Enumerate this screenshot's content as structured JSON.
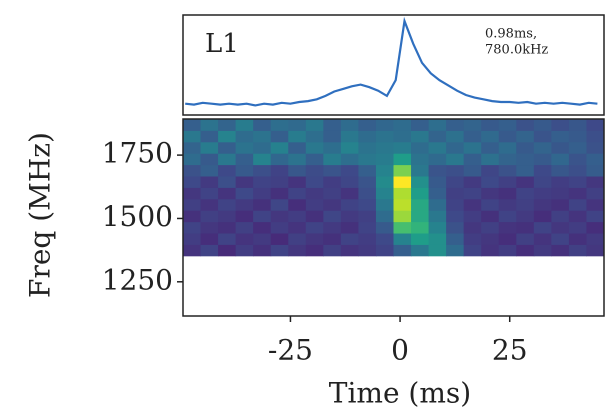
{
  "chart_data": [
    {
      "type": "line",
      "label": "L1",
      "annotation": [
        "0.98ms,",
        "780.0kHz"
      ],
      "color": "#2f6fbf",
      "xlim": [
        -49.5,
        46.5
      ],
      "ylim": [
        -0.1,
        1.05
      ],
      "x": [
        -49,
        -47,
        -45,
        -43,
        -41,
        -39,
        -37,
        -35,
        -33,
        -31,
        -29,
        -27,
        -25,
        -23,
        -21,
        -19,
        -17,
        -15,
        -13,
        -11,
        -9,
        -7,
        -5,
        -3,
        -1,
        1,
        3,
        5,
        7,
        9,
        11,
        13,
        15,
        17,
        19,
        21,
        23,
        25,
        27,
        29,
        31,
        33,
        35,
        37,
        39,
        41,
        43,
        45
      ],
      "values": [
        0.03,
        0.02,
        0.04,
        0.03,
        0.02,
        0.03,
        0.02,
        0.03,
        0.01,
        0.03,
        0.02,
        0.04,
        0.03,
        0.05,
        0.06,
        0.08,
        0.12,
        0.17,
        0.2,
        0.23,
        0.25,
        0.22,
        0.18,
        0.12,
        0.3,
        0.98,
        0.72,
        0.5,
        0.38,
        0.3,
        0.24,
        0.18,
        0.13,
        0.1,
        0.08,
        0.06,
        0.05,
        0.05,
        0.04,
        0.05,
        0.03,
        0.04,
        0.03,
        0.04,
        0.03,
        0.02,
        0.04,
        0.03
      ]
    },
    {
      "type": "heatmap",
      "xlabel": "Time (ms)",
      "ylabel": "Freq (MHz)",
      "colormap": "viridis",
      "zlim": [
        0,
        1
      ],
      "xlim": [
        -49.5,
        46.5
      ],
      "ylim": [
        1115,
        1892.5
      ],
      "xticks": [
        -25,
        0,
        25
      ],
      "yticks": [
        1250,
        1500,
        1750
      ],
      "x": [
        -47.5,
        -43.5,
        -39.5,
        -35.5,
        -31.5,
        -27.5,
        -23.5,
        -19.5,
        -15.5,
        -11.5,
        -7.5,
        -3.5,
        0.5,
        4.5,
        8.5,
        12.5,
        16.5,
        20.5,
        24.5,
        28.5,
        32.5,
        36.5,
        40.5,
        44.5
      ],
      "y": [
        1375,
        1420,
        1465,
        1510,
        1555,
        1600,
        1645,
        1690,
        1735,
        1780,
        1825,
        1870
      ],
      "z": [
        [
          0.15,
          0.2,
          0.12,
          0.18,
          0.14,
          0.2,
          0.16,
          0.13,
          0.19,
          0.15,
          0.17,
          0.2,
          0.3,
          0.4,
          0.5,
          0.35,
          0.2,
          0.15,
          0.18,
          0.13,
          0.17,
          0.14,
          0.19,
          0.16
        ],
        [
          0.18,
          0.13,
          0.2,
          0.15,
          0.17,
          0.12,
          0.19,
          0.16,
          0.14,
          0.2,
          0.18,
          0.22,
          0.45,
          0.55,
          0.5,
          0.3,
          0.18,
          0.16,
          0.13,
          0.19,
          0.15,
          0.2,
          0.14,
          0.17
        ],
        [
          0.2,
          0.16,
          0.14,
          0.19,
          0.13,
          0.18,
          0.15,
          0.2,
          0.17,
          0.14,
          0.2,
          0.28,
          0.7,
          0.65,
          0.45,
          0.25,
          0.16,
          0.19,
          0.15,
          0.14,
          0.2,
          0.16,
          0.18,
          0.13
        ],
        [
          0.14,
          0.19,
          0.17,
          0.13,
          0.2,
          0.16,
          0.18,
          0.14,
          0.21,
          0.17,
          0.19,
          0.35,
          0.85,
          0.6,
          0.4,
          0.22,
          0.18,
          0.14,
          0.2,
          0.17,
          0.13,
          0.19,
          0.15,
          0.2
        ],
        [
          0.19,
          0.15,
          0.2,
          0.17,
          0.14,
          0.21,
          0.13,
          0.18,
          0.16,
          0.2,
          0.22,
          0.4,
          0.9,
          0.6,
          0.35,
          0.2,
          0.15,
          0.2,
          0.17,
          0.19,
          0.16,
          0.14,
          0.2,
          0.15
        ],
        [
          0.16,
          0.2,
          0.15,
          0.22,
          0.18,
          0.14,
          0.2,
          0.17,
          0.19,
          0.15,
          0.24,
          0.45,
          0.88,
          0.55,
          0.3,
          0.19,
          0.2,
          0.16,
          0.14,
          0.2,
          0.18,
          0.17,
          0.15,
          0.19
        ],
        [
          0.22,
          0.17,
          0.24,
          0.16,
          0.2,
          0.19,
          0.15,
          0.22,
          0.18,
          0.21,
          0.26,
          0.48,
          1.0,
          0.5,
          0.28,
          0.21,
          0.17,
          0.22,
          0.19,
          0.15,
          0.21,
          0.18,
          0.2,
          0.16
        ],
        [
          0.25,
          0.3,
          0.22,
          0.28,
          0.24,
          0.2,
          0.27,
          0.23,
          0.26,
          0.22,
          0.3,
          0.45,
          0.8,
          0.4,
          0.26,
          0.24,
          0.28,
          0.21,
          0.25,
          0.3,
          0.22,
          0.27,
          0.24,
          0.29
        ],
        [
          0.35,
          0.28,
          0.4,
          0.3,
          0.45,
          0.33,
          0.38,
          0.3,
          0.42,
          0.36,
          0.4,
          0.42,
          0.55,
          0.38,
          0.34,
          0.4,
          0.3,
          0.37,
          0.32,
          0.3,
          0.28,
          0.33,
          0.26,
          0.3
        ],
        [
          0.32,
          0.42,
          0.3,
          0.38,
          0.35,
          0.44,
          0.3,
          0.4,
          0.36,
          0.45,
          0.38,
          0.4,
          0.42,
          0.35,
          0.4,
          0.33,
          0.38,
          0.3,
          0.35,
          0.28,
          0.32,
          0.27,
          0.3,
          0.25
        ],
        [
          0.4,
          0.3,
          0.45,
          0.35,
          0.38,
          0.3,
          0.42,
          0.36,
          0.3,
          0.4,
          0.35,
          0.38,
          0.36,
          0.4,
          0.32,
          0.37,
          0.3,
          0.34,
          0.28,
          0.32,
          0.26,
          0.3,
          0.28,
          0.24
        ],
        [
          0.3,
          0.38,
          0.32,
          0.42,
          0.3,
          0.36,
          0.34,
          0.4,
          0.3,
          0.35,
          0.3,
          0.33,
          0.35,
          0.3,
          0.36,
          0.3,
          0.32,
          0.28,
          0.3,
          0.25,
          0.28,
          0.24,
          0.27,
          0.22
        ]
      ]
    }
  ]
}
